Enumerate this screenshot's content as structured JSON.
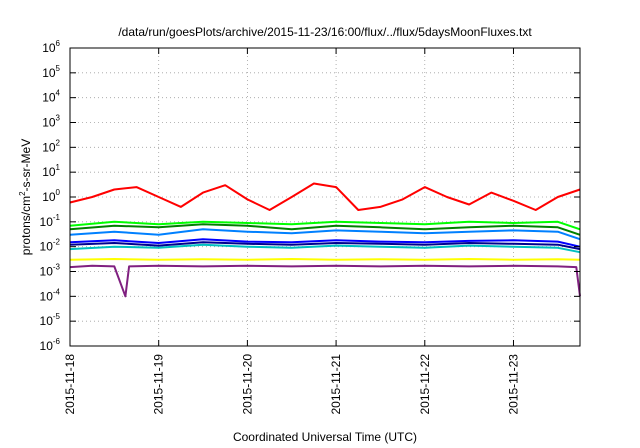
{
  "chart_data": {
    "type": "line",
    "title": "/data/run/goesPlots/archive/2015-11-23/16:00/flux/../flux/5daysMoonFluxes.txt",
    "xlabel": "Coordinated Universal Time (UTC)",
    "ylabel_parts": [
      "protons/cm",
      "2",
      "-s-sr-MeV"
    ],
    "y_scale": "log",
    "ylim": [
      1e-06,
      1000000.0
    ],
    "y_ticks": [
      {
        "base": "10",
        "exp": "-6",
        "value": 1e-06
      },
      {
        "base": "10",
        "exp": "-5",
        "value": 1e-05
      },
      {
        "base": "10",
        "exp": "-4",
        "value": 0.0001
      },
      {
        "base": "10",
        "exp": "-3",
        "value": 0.001
      },
      {
        "base": "10",
        "exp": "-2",
        "value": 0.01
      },
      {
        "base": "10",
        "exp": "-1",
        "value": 0.1
      },
      {
        "base": "10",
        "exp": "0",
        "value": 1
      },
      {
        "base": "10",
        "exp": "1",
        "value": 10
      },
      {
        "base": "10",
        "exp": "2",
        "value": 100
      },
      {
        "base": "10",
        "exp": "3",
        "value": 1000
      },
      {
        "base": "10",
        "exp": "4",
        "value": 10000
      },
      {
        "base": "10",
        "exp": "5",
        "value": 100000
      },
      {
        "base": "10",
        "exp": "6",
        "value": 1000000
      }
    ],
    "xlim": [
      "2015-11-18",
      "2015-11-23T18:00"
    ],
    "x_ticks": [
      {
        "label": "2015-11-18",
        "value": "2015-11-18"
      },
      {
        "label": "2015-11-19",
        "value": "2015-11-19"
      },
      {
        "label": "2015-11-20",
        "value": "2015-11-20"
      },
      {
        "label": "2015-11-21",
        "value": "2015-11-21"
      },
      {
        "label": "2015-11-22",
        "value": "2015-11-22"
      },
      {
        "label": "2015-11-23",
        "value": "2015-11-23"
      }
    ],
    "grid": true,
    "series": [
      {
        "color": "#008000",
        "x": [
          "2015-11-18T00:00",
          "2015-11-18T12:00",
          "2015-11-19T00:00",
          "2015-11-19T12:00",
          "2015-11-20T00:00",
          "2015-11-20T12:00",
          "2015-11-21T00:00",
          "2015-11-21T12:00",
          "2015-11-22T00:00",
          "2015-11-22T12:00",
          "2015-11-23T00:00",
          "2015-11-23T12:00",
          "2015-11-23T18:00"
        ],
        "values": [
          0.05,
          0.07,
          0.06,
          0.08,
          0.07,
          0.05,
          0.07,
          0.06,
          0.05,
          0.06,
          0.07,
          0.06,
          0.03
        ]
      },
      {
        "color": "#00ff00",
        "x": [
          "2015-11-18T00:00",
          "2015-11-18T12:00",
          "2015-11-19T00:00",
          "2015-11-19T12:00",
          "2015-11-20T00:00",
          "2015-11-20T12:00",
          "2015-11-21T00:00",
          "2015-11-21T12:00",
          "2015-11-22T00:00",
          "2015-11-22T12:00",
          "2015-11-23T00:00",
          "2015-11-23T12:00",
          "2015-11-23T18:00"
        ],
        "values": [
          0.07,
          0.1,
          0.08,
          0.1,
          0.09,
          0.08,
          0.1,
          0.09,
          0.08,
          0.1,
          0.09,
          0.1,
          0.05
        ]
      },
      {
        "color": "#00c0c0",
        "x": [
          "2015-11-18T00:00",
          "2015-11-18T12:00",
          "2015-11-19T00:00",
          "2015-11-19T12:00",
          "2015-11-20T00:00",
          "2015-11-20T12:00",
          "2015-11-21T00:00",
          "2015-11-21T12:00",
          "2015-11-22T00:00",
          "2015-11-22T12:00",
          "2015-11-23T00:00",
          "2015-11-23T12:00",
          "2015-11-23T18:00"
        ],
        "values": [
          0.008,
          0.01,
          0.009,
          0.012,
          0.01,
          0.009,
          0.011,
          0.01,
          0.009,
          0.011,
          0.01,
          0.009,
          0.006
        ]
      },
      {
        "color": "#0080ff",
        "x": [
          "2015-11-18T00:00",
          "2015-11-18T12:00",
          "2015-11-19T00:00",
          "2015-11-19T12:00",
          "2015-11-20T00:00",
          "2015-11-20T12:00",
          "2015-11-21T00:00",
          "2015-11-21T12:00",
          "2015-11-22T00:00",
          "2015-11-22T12:00",
          "2015-11-23T00:00",
          "2015-11-23T12:00",
          "2015-11-23T18:00"
        ],
        "values": [
          0.03,
          0.04,
          0.03,
          0.05,
          0.04,
          0.035,
          0.045,
          0.04,
          0.035,
          0.04,
          0.045,
          0.04,
          0.02
        ]
      },
      {
        "color": "#0000ff",
        "x": [
          "2015-11-18T00:00",
          "2015-11-18T12:00",
          "2015-11-19T00:00",
          "2015-11-19T12:00",
          "2015-11-20T00:00",
          "2015-11-20T12:00",
          "2015-11-21T00:00",
          "2015-11-21T12:00",
          "2015-11-22T00:00",
          "2015-11-22T12:00",
          "2015-11-23T00:00",
          "2015-11-23T12:00",
          "2015-11-23T18:00"
        ],
        "values": [
          0.015,
          0.018,
          0.014,
          0.02,
          0.016,
          0.015,
          0.018,
          0.016,
          0.015,
          0.017,
          0.018,
          0.016,
          0.01
        ]
      },
      {
        "color": "#000090",
        "x": [
          "2015-11-18T00:00",
          "2015-11-18T12:00",
          "2015-11-19T00:00",
          "2015-11-19T12:00",
          "2015-11-20T00:00",
          "2015-11-20T12:00",
          "2015-11-21T00:00",
          "2015-11-21T12:00",
          "2015-11-22T00:00",
          "2015-11-22T12:00",
          "2015-11-23T00:00",
          "2015-11-23T12:00",
          "2015-11-23T18:00"
        ],
        "values": [
          0.012,
          0.014,
          0.011,
          0.015,
          0.013,
          0.012,
          0.014,
          0.013,
          0.012,
          0.014,
          0.013,
          0.012,
          0.008
        ]
      },
      {
        "color": "#ffff00",
        "x": [
          "2015-11-18T00:00",
          "2015-11-18T12:00",
          "2015-11-19T00:00",
          "2015-11-19T12:00",
          "2015-11-20T00:00",
          "2015-11-20T12:00",
          "2015-11-21T00:00",
          "2015-11-21T12:00",
          "2015-11-22T00:00",
          "2015-11-22T12:00",
          "2015-11-23T00:00",
          "2015-11-23T12:00",
          "2015-11-23T18:00"
        ],
        "values": [
          0.003,
          0.0032,
          0.003,
          0.0031,
          0.003,
          0.0032,
          0.003,
          0.0031,
          0.003,
          0.0032,
          0.003,
          0.0031,
          0.003
        ]
      },
      {
        "color": "#802080",
        "x": [
          "2015-11-18T00:00",
          "2015-11-18T06:00",
          "2015-11-18T12:00",
          "2015-11-18T15:00",
          "2015-11-18T16:00",
          "2015-11-19T00:00",
          "2015-11-19T12:00",
          "2015-11-20T00:00",
          "2015-11-20T12:00",
          "2015-11-21T00:00",
          "2015-11-21T12:00",
          "2015-11-22T00:00",
          "2015-11-22T12:00",
          "2015-11-23T00:00",
          "2015-11-23T12:00",
          "2015-11-23T17:00",
          "2015-11-23T18:00"
        ],
        "values": [
          0.0015,
          0.0017,
          0.0016,
          0.0001,
          0.0016,
          0.0017,
          0.0016,
          0.0017,
          0.0016,
          0.0017,
          0.0016,
          0.0017,
          0.0016,
          0.0017,
          0.0016,
          0.0015,
          0.0001
        ]
      },
      {
        "color": "#ff0000",
        "x": [
          "2015-11-18T00:00",
          "2015-11-18T06:00",
          "2015-11-18T12:00",
          "2015-11-18T18:00",
          "2015-11-19T00:00",
          "2015-11-19T06:00",
          "2015-11-19T12:00",
          "2015-11-19T18:00",
          "2015-11-20T00:00",
          "2015-11-20T06:00",
          "2015-11-20T12:00",
          "2015-11-20T18:00",
          "2015-11-21T00:00",
          "2015-11-21T06:00",
          "2015-11-21T12:00",
          "2015-11-21T18:00",
          "2015-11-22T00:00",
          "2015-11-22T06:00",
          "2015-11-22T12:00",
          "2015-11-22T18:00",
          "2015-11-23T00:00",
          "2015-11-23T06:00",
          "2015-11-23T12:00",
          "2015-11-23T18:00"
        ],
        "values": [
          0.6,
          1.0,
          2.0,
          2.5,
          1.0,
          0.4,
          1.5,
          3.0,
          0.8,
          0.3,
          1.0,
          3.5,
          2.5,
          0.3,
          0.4,
          0.8,
          2.5,
          1.0,
          0.5,
          1.5,
          0.7,
          0.3,
          1.0,
          2.0
        ]
      }
    ]
  }
}
